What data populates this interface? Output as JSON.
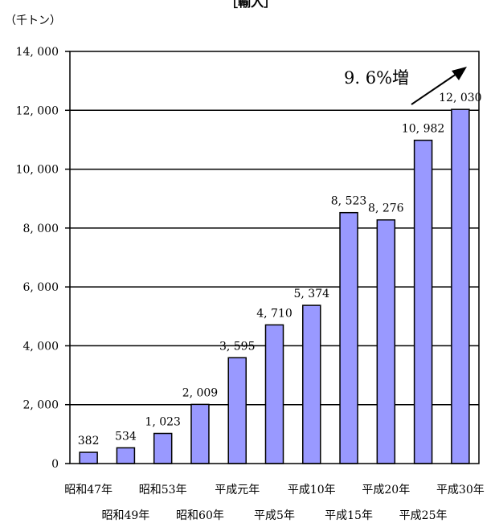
{
  "chart_data": {
    "type": "bar",
    "title": "［輸入］",
    "unit_label": "（千トン）",
    "categories": [
      "昭和47年",
      "昭和49年",
      "昭和53年",
      "昭和60年",
      "平成元年",
      "平成5年",
      "平成10年",
      "平成15年",
      "平成20年",
      "平成25年",
      "平成30年"
    ],
    "values": [
      382,
      534,
      1023,
      2009,
      3595,
      4710,
      5374,
      8523,
      8276,
      10982,
      12030
    ],
    "value_labels": [
      "382",
      "534",
      "1, 023",
      "2, 009",
      "3, 595",
      "4, 710",
      "5, 374",
      "8, 523",
      "8, 276",
      "10, 982",
      "12, 030"
    ],
    "y_ticks": [
      0,
      2000,
      4000,
      6000,
      8000,
      10000,
      12000,
      14000
    ],
    "y_tick_labels": [
      "0",
      "2, 000",
      "4, 000",
      "6, 000",
      "8, 000",
      "10, 000",
      "12, 000",
      "14, 000"
    ],
    "ylim": [
      0,
      14000
    ],
    "annotation": "9. 6%増",
    "grid": true,
    "bar_color": "#9999ff"
  }
}
